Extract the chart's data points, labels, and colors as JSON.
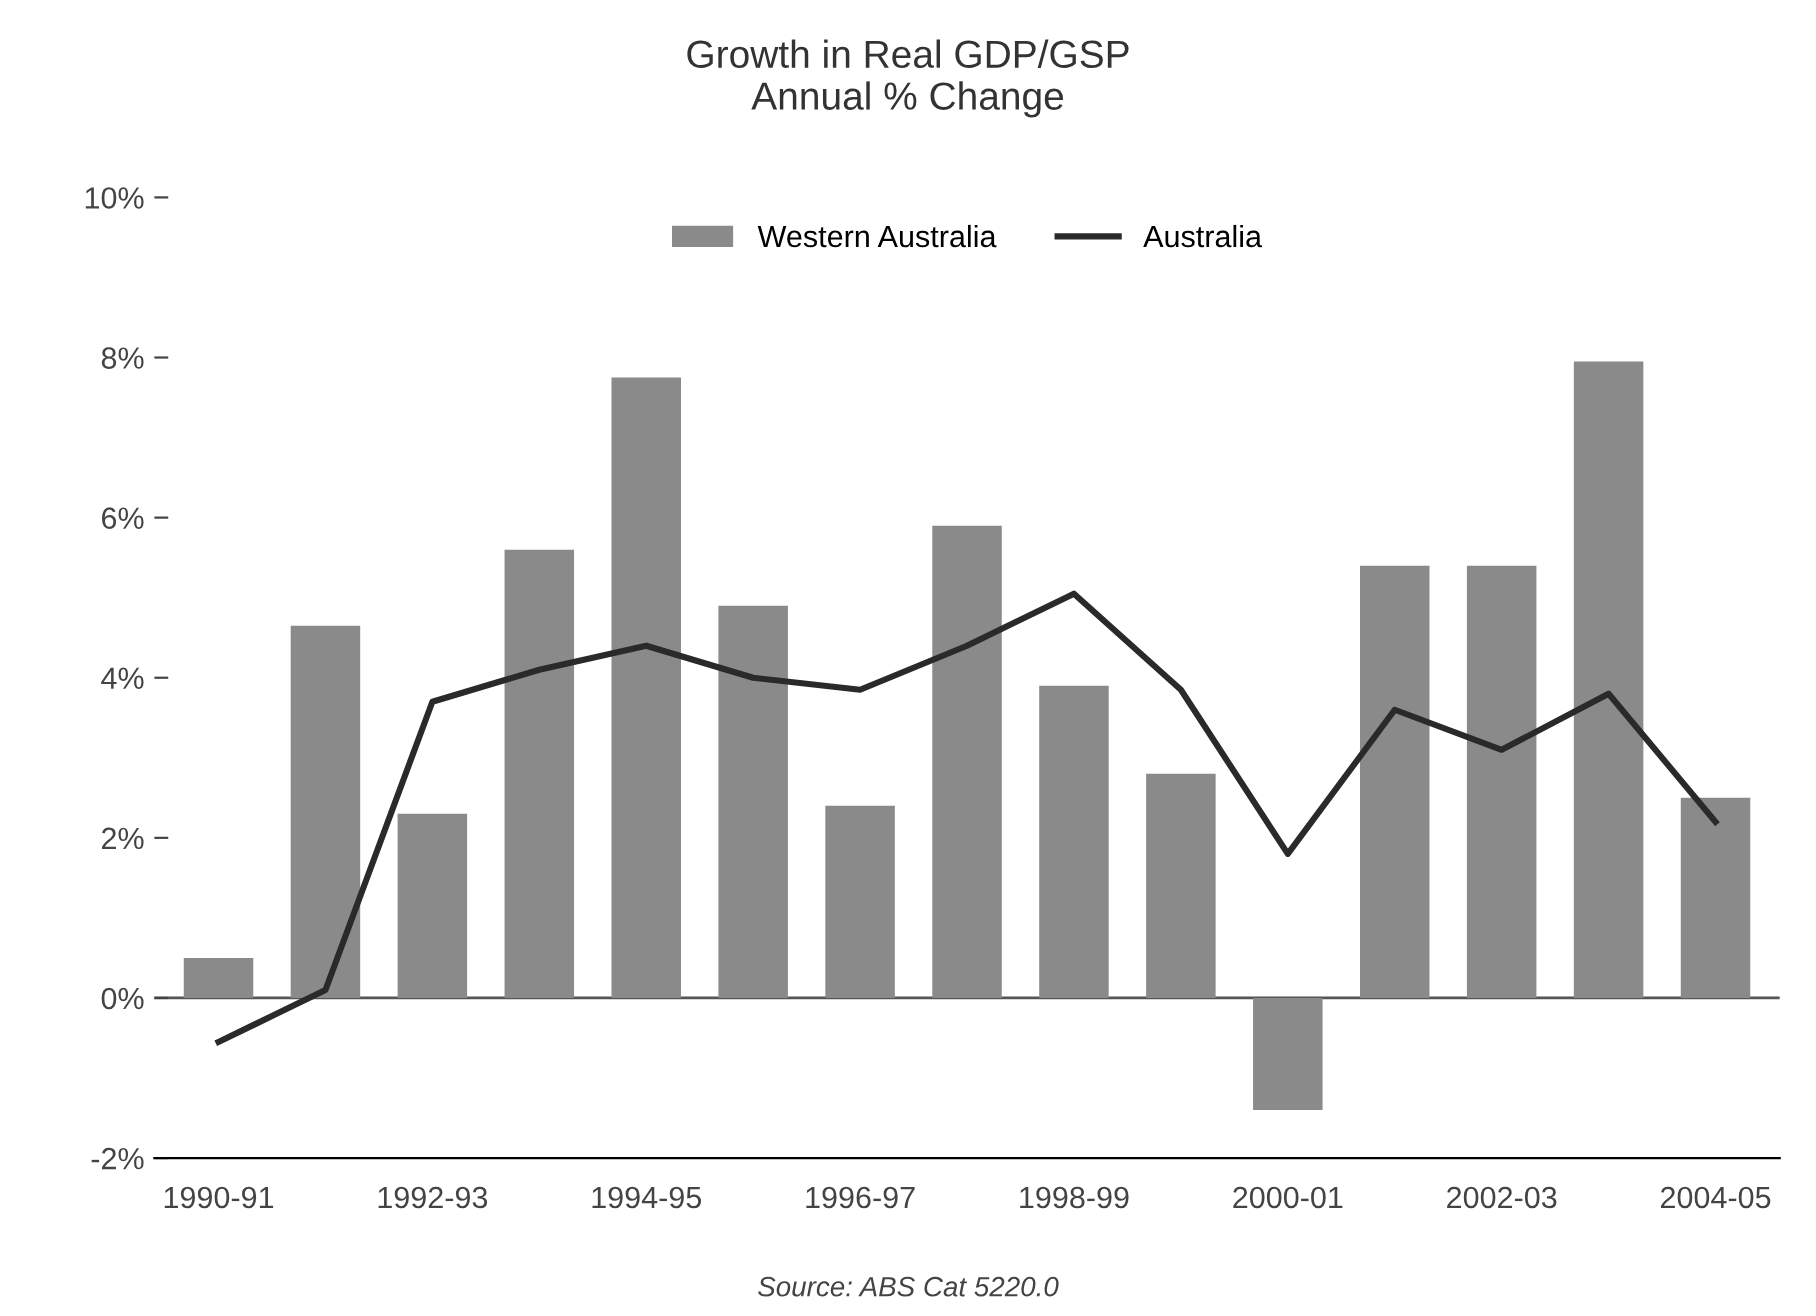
{
  "chart_data": {
    "type": "bar",
    "title": "Growth in Real GDP/GSP\nAnnual % Change",
    "categories": [
      "1990-91",
      null,
      "1992-93",
      null,
      "1994-95",
      null,
      "1996-97",
      null,
      "1998-99",
      null,
      "2000-01",
      null,
      "2002-03",
      null,
      "2004-05"
    ],
    "series": [
      {
        "name": "Western Australia",
        "color": "#8a8a8a",
        "values": [
          0.5,
          4.65,
          2.3,
          5.6,
          7.75,
          4.9,
          2.4,
          5.9,
          3.9,
          2.8,
          -1.4,
          5.4,
          5.4,
          7.95,
          2.5
        ]
      },
      {
        "name": "Australia",
        "type": "line",
        "color": "#2a2a2a",
        "values": [
          -0.55,
          0.1,
          3.7,
          4.1,
          4.4,
          4.0,
          3.85,
          4.4,
          5.05,
          3.85,
          1.8,
          3.6,
          3.1,
          3.8,
          2.2
        ]
      }
    ],
    "ylim": [
      -2,
      10
    ],
    "yticks": [
      {
        "value": -2,
        "label": "-2%"
      },
      {
        "value": 0,
        "label": "0%"
      },
      {
        "value": 2,
        "label": "2%"
      },
      {
        "value": 4,
        "label": "4%"
      },
      {
        "value": 6,
        "label": "6%"
      },
      {
        "value": 8,
        "label": "8%"
      },
      {
        "value": 10,
        "label": "10%"
      }
    ],
    "legend": "top",
    "annotations": [
      "Source: ABS Cat 5220.0"
    ]
  }
}
